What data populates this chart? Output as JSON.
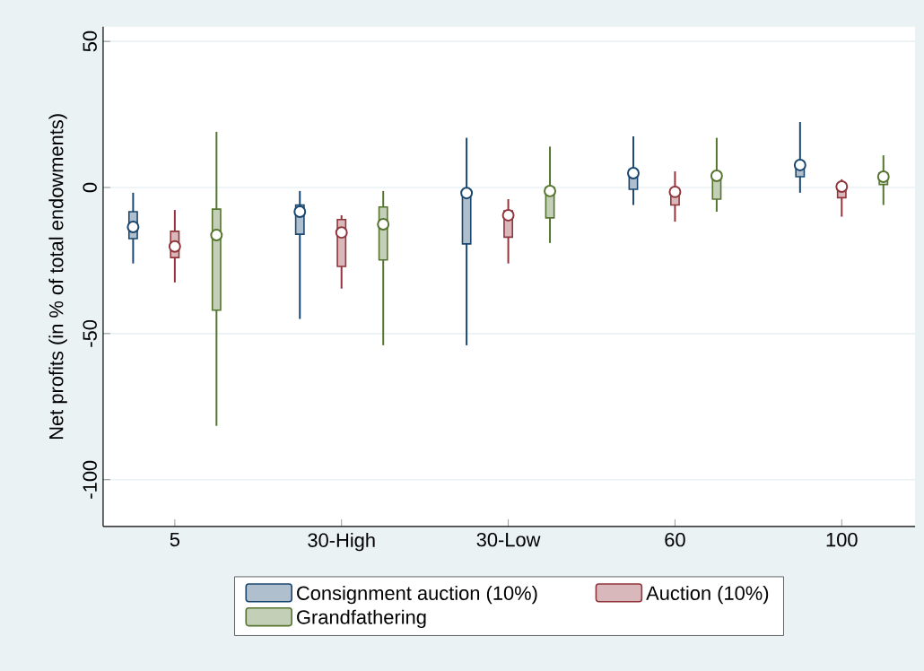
{
  "chart_data": {
    "type": "box",
    "ylabel": "Net profits (in % of total endowments)",
    "categories": [
      "5",
      "30-High",
      "30-Low",
      "60",
      "100"
    ],
    "ylim": [
      -116,
      55
    ],
    "yticks": [
      -100,
      -50,
      0,
      50
    ],
    "grid": "y",
    "legend": "bottom",
    "series": [
      {
        "name": "Consignment auction (10%)",
        "color": "#1a476f",
        "boxes": [
          {
            "low": -26,
            "q1": -17.5,
            "median": -13.5,
            "q3": -8.3,
            "high": -1.8
          },
          {
            "low": -45,
            "q1": -16,
            "median": -8.3,
            "q3": -6,
            "high": -1.2
          },
          {
            "low": -54,
            "q1": -19.3,
            "median": -1.9,
            "q3": -1,
            "high": 17
          },
          {
            "low": -6,
            "q1": -0.6,
            "median": 4.9,
            "q3": 6,
            "high": 17.5
          },
          {
            "low": -1.8,
            "q1": 3.7,
            "median": 7.7,
            "q3": 8.5,
            "high": 22.4
          }
        ]
      },
      {
        "name": "Auction (10%)",
        "color": "#90353b",
        "boxes": [
          {
            "low": -32.5,
            "q1": -24,
            "median": -20.2,
            "q3": -15,
            "high": -7.7
          },
          {
            "low": -34.6,
            "q1": -27,
            "median": -15.4,
            "q3": -11,
            "high": -9.5
          },
          {
            "low": -26,
            "q1": -17,
            "median": -9.5,
            "q3": -8,
            "high": -4
          },
          {
            "low": -11.7,
            "q1": -6,
            "median": -1.5,
            "q3": -0.5,
            "high": 5.5
          },
          {
            "low": -10,
            "q1": -3.5,
            "median": 0.3,
            "q3": 1,
            "high": 2.8
          }
        ]
      },
      {
        "name": "Grandfathering",
        "color": "#55752f",
        "boxes": [
          {
            "low": -81.6,
            "q1": -42,
            "median": -16.3,
            "q3": -7.4,
            "high": 19
          },
          {
            "low": -54,
            "q1": -24.8,
            "median": -12.6,
            "q3": -6.7,
            "high": -1.2
          },
          {
            "low": -19,
            "q1": -10.4,
            "median": -1.2,
            "q3": 0,
            "high": 14
          },
          {
            "low": -8.3,
            "q1": -4,
            "median": 4,
            "q3": 5,
            "high": 17
          },
          {
            "low": -6,
            "q1": 1,
            "median": 3.7,
            "q3": 5,
            "high": 11
          }
        ]
      }
    ]
  }
}
